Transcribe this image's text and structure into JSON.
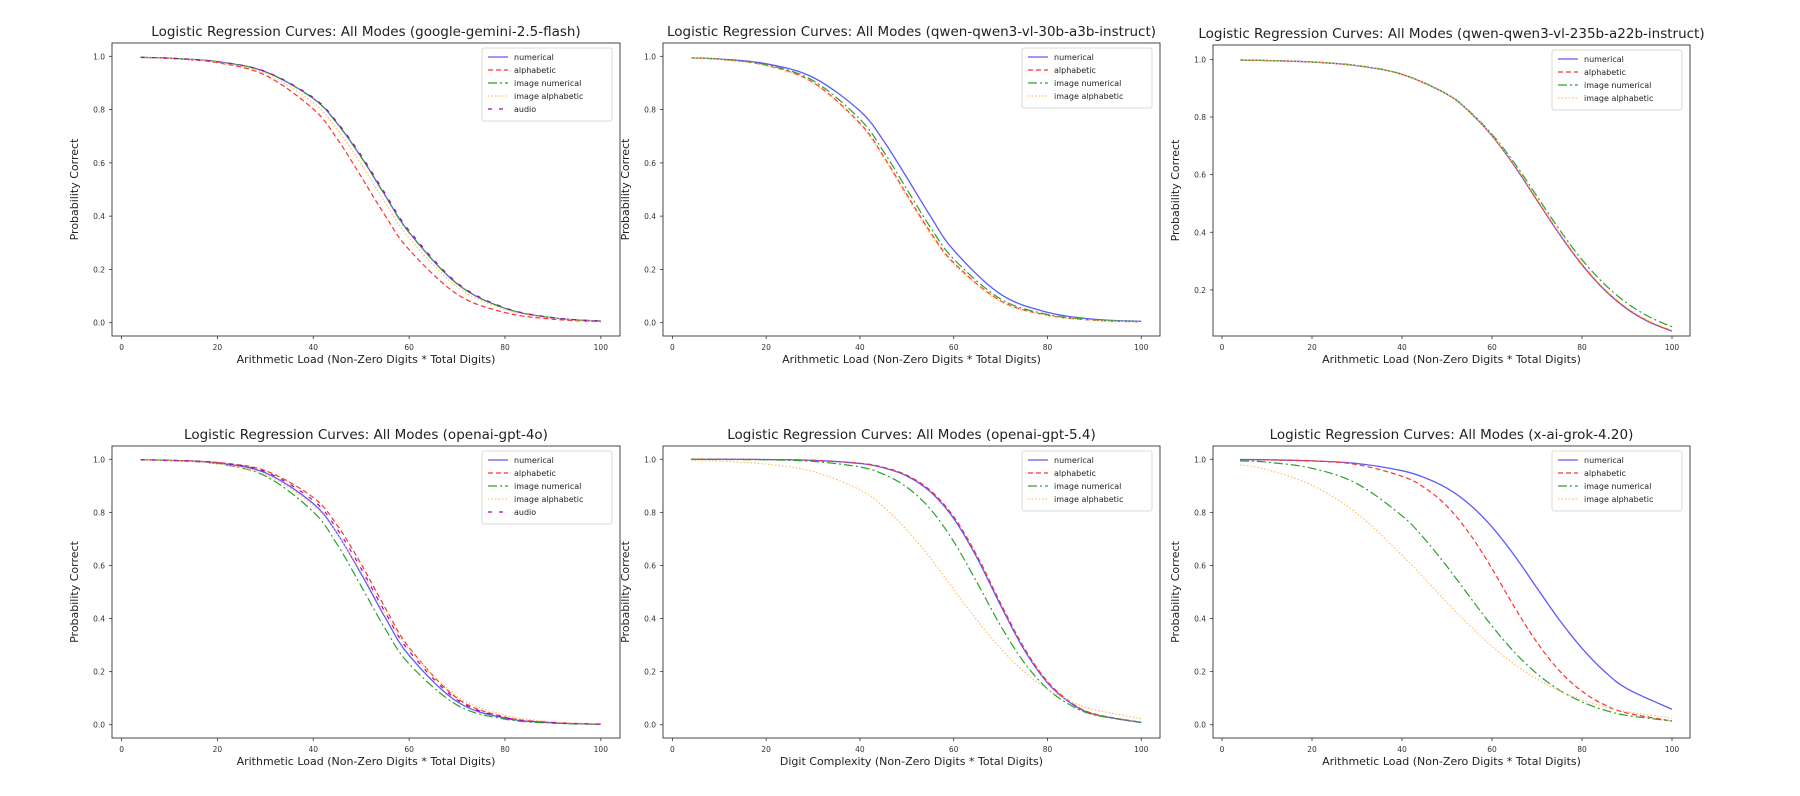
{
  "chart_data": [
    {
      "type": "line",
      "title": "Logistic Regression Curves: All Modes (google-gemini-2.5-flash)",
      "xlabel": "Arithmetic Load (Non-Zero Digits * Total Digits)",
      "ylabel": "Probability Correct",
      "xlim": [
        0,
        100
      ],
      "ylim": [
        0.0,
        1.0
      ],
      "xticks": [
        0,
        20,
        40,
        60,
        80,
        100
      ],
      "yticks": [
        0.0,
        0.2,
        0.4,
        0.6,
        0.8,
        1.0
      ],
      "grid": false,
      "legend_position": "top-right",
      "x": [
        4,
        10,
        20,
        30,
        40,
        45,
        50,
        55,
        60,
        70,
        80,
        90,
        100
      ],
      "series": [
        {
          "name": "numerical",
          "style": "solid",
          "color": "#5a5aff",
          "values": [
            0.996,
            0.993,
            0.98,
            0.942,
            0.842,
            0.748,
            0.622,
            0.478,
            0.339,
            0.146,
            0.054,
            0.018,
            0.006
          ]
        },
        {
          "name": "alphabetic",
          "style": "dashed",
          "color": "#ff3030",
          "values": [
            0.996,
            0.992,
            0.976,
            0.929,
            0.802,
            0.69,
            0.548,
            0.402,
            0.274,
            0.107,
            0.038,
            0.013,
            0.004
          ]
        },
        {
          "name": "image numerical",
          "style": "dashdot",
          "color": "#2ca02c",
          "values": [
            0.996,
            0.993,
            0.98,
            0.942,
            0.841,
            0.747,
            0.621,
            0.477,
            0.338,
            0.146,
            0.054,
            0.018,
            0.006
          ]
        },
        {
          "name": "image alphabetic",
          "style": "dotted",
          "color": "#ffbf66",
          "values": [
            0.996,
            0.992,
            0.978,
            0.936,
            0.825,
            0.725,
            0.595,
            0.451,
            0.318,
            0.135,
            0.05,
            0.017,
            0.006
          ]
        },
        {
          "name": "audio",
          "style": "dashed-sparse",
          "color": "#b000b0",
          "values": [
            0.996,
            0.993,
            0.98,
            0.943,
            0.845,
            0.752,
            0.628,
            0.485,
            0.346,
            0.15,
            0.056,
            0.019,
            0.006
          ]
        }
      ]
    },
    {
      "type": "line",
      "title": "Logistic Regression Curves: All Modes (qwen-qwen3-vl-30b-a3b-instruct)",
      "xlabel": "Arithmetic Load (Non-Zero Digits * Total Digits)",
      "ylabel": "Probability Correct",
      "xlim": [
        0,
        100
      ],
      "ylim": [
        0.0,
        1.0
      ],
      "xticks": [
        0,
        20,
        40,
        60,
        80,
        100
      ],
      "yticks": [
        0.0,
        0.2,
        0.4,
        0.6,
        0.8,
        1.0
      ],
      "grid": false,
      "legend_position": "top-right",
      "x": [
        4,
        10,
        20,
        30,
        40,
        45,
        50,
        55,
        60,
        70,
        80,
        90,
        100
      ],
      "series": [
        {
          "name": "numerical",
          "style": "solid",
          "color": "#5a5aff",
          "values": [
            0.994,
            0.99,
            0.972,
            0.921,
            0.795,
            0.684,
            0.545,
            0.401,
            0.272,
            0.107,
            0.039,
            0.013,
            0.005
          ]
        },
        {
          "name": "alphabetic",
          "style": "dashed",
          "color": "#ff3030",
          "values": [
            0.994,
            0.989,
            0.966,
            0.902,
            0.749,
            0.626,
            0.481,
            0.341,
            0.225,
            0.082,
            0.028,
            0.009,
            0.003
          ]
        },
        {
          "name": "image numerical",
          "style": "dashdot",
          "color": "#2ca02c",
          "values": [
            0.994,
            0.989,
            0.968,
            0.909,
            0.764,
            0.644,
            0.501,
            0.359,
            0.239,
            0.089,
            0.031,
            0.011,
            0.004
          ]
        },
        {
          "name": "image alphabetic",
          "style": "dotted",
          "color": "#ffbf66",
          "values": [
            0.994,
            0.988,
            0.965,
            0.899,
            0.743,
            0.619,
            0.473,
            0.333,
            0.219,
            0.079,
            0.027,
            0.009,
            0.003
          ]
        }
      ]
    },
    {
      "type": "line",
      "title": "Logistic Regression Curves: All Modes (qwen-qwen3-vl-235b-a22b-instruct)",
      "xlabel": "Arithmetic Load (Non-Zero Digits * Total Digits)",
      "ylabel": "Probability Correct",
      "xlim": [
        0,
        100
      ],
      "ylim": [
        0.0,
        1.0
      ],
      "xticks": [
        0,
        20,
        40,
        60,
        80,
        100
      ],
      "yticks": [
        0.2,
        0.4,
        0.6,
        0.8,
        1.0
      ],
      "grid": false,
      "legend_position": "top-right",
      "x": [
        4,
        10,
        20,
        30,
        40,
        50,
        55,
        60,
        65,
        70,
        75,
        80,
        85,
        90,
        95,
        100
      ],
      "series": [
        {
          "name": "numerical",
          "style": "solid",
          "color": "#5a5aff",
          "values": [
            0.998,
            0.996,
            0.991,
            0.978,
            0.948,
            0.879,
            0.818,
            0.735,
            0.63,
            0.511,
            0.393,
            0.287,
            0.2,
            0.134,
            0.088,
            0.057
          ]
        },
        {
          "name": "alphabetic",
          "style": "dashed",
          "color": "#ff3030",
          "values": [
            0.998,
            0.996,
            0.991,
            0.978,
            0.948,
            0.879,
            0.818,
            0.735,
            0.631,
            0.512,
            0.394,
            0.288,
            0.201,
            0.135,
            0.089,
            0.058
          ]
        },
        {
          "name": "image numerical",
          "style": "dashdot",
          "color": "#2ca02c",
          "values": [
            0.998,
            0.996,
            0.991,
            0.979,
            0.949,
            0.88,
            0.82,
            0.74,
            0.64,
            0.525,
            0.409,
            0.305,
            0.22,
            0.154,
            0.106,
            0.072
          ]
        },
        {
          "name": "image alphabetic",
          "style": "dotted",
          "color": "#ffbf66",
          "values": [
            0.998,
            0.996,
            0.991,
            0.978,
            0.948,
            0.879,
            0.819,
            0.737,
            0.634,
            0.516,
            0.398,
            0.292,
            0.205,
            0.139,
            0.092,
            0.06
          ]
        }
      ]
    },
    {
      "type": "line",
      "title": "Logistic Regression Curves: All Modes (openai-gpt-4o)",
      "xlabel": "Arithmetic Load (Non-Zero Digits * Total Digits)",
      "ylabel": "Probability Correct",
      "xlim": [
        0,
        100
      ],
      "ylim": [
        0.0,
        1.0
      ],
      "xticks": [
        0,
        20,
        40,
        60,
        80,
        100
      ],
      "yticks": [
        0.0,
        0.2,
        0.4,
        0.6,
        0.8,
        1.0
      ],
      "grid": false,
      "legend_position": "top-right",
      "x": [
        4,
        10,
        20,
        30,
        40,
        45,
        50,
        55,
        60,
        70,
        80,
        90,
        100
      ],
      "series": [
        {
          "name": "numerical",
          "style": "solid",
          "color": "#5a5aff",
          "values": [
            0.998,
            0.996,
            0.986,
            0.949,
            0.833,
            0.72,
            0.568,
            0.404,
            0.261,
            0.087,
            0.025,
            0.007,
            0.002
          ]
        },
        {
          "name": "alphabetic",
          "style": "dashed",
          "color": "#ff3030",
          "values": [
            0.998,
            0.996,
            0.988,
            0.957,
            0.856,
            0.751,
            0.605,
            0.441,
            0.291,
            0.1,
            0.029,
            0.008,
            0.002
          ]
        },
        {
          "name": "image numerical",
          "style": "dashdot",
          "color": "#2ca02c",
          "values": [
            0.998,
            0.995,
            0.983,
            0.937,
            0.802,
            0.679,
            0.522,
            0.362,
            0.229,
            0.074,
            0.021,
            0.006,
            0.002
          ]
        },
        {
          "name": "image alphabetic",
          "style": "dotted",
          "color": "#ffbf66",
          "values": [
            0.997,
            0.995,
            0.983,
            0.942,
            0.827,
            0.718,
            0.575,
            0.422,
            0.285,
            0.108,
            0.036,
            0.011,
            0.004
          ]
        },
        {
          "name": "audio",
          "style": "dashed-sparse",
          "color": "#b000b0",
          "values": [
            0.998,
            0.996,
            0.987,
            0.953,
            0.845,
            0.736,
            0.588,
            0.424,
            0.277,
            0.094,
            0.027,
            0.008,
            0.002
          ]
        }
      ]
    },
    {
      "type": "line",
      "title": "Logistic Regression Curves: All Modes (openai-gpt-5.4)",
      "xlabel": "Digit Complexity (Non-Zero Digits * Total Digits)",
      "ylabel": "Probability Correct",
      "xlim": [
        0,
        100
      ],
      "ylim": [
        0.0,
        1.0
      ],
      "xticks": [
        0,
        20,
        40,
        60,
        80,
        100
      ],
      "yticks": [
        0.0,
        0.2,
        0.4,
        0.6,
        0.8,
        1.0
      ],
      "grid": false,
      "legend_position": "top-right",
      "x": [
        4,
        10,
        20,
        30,
        40,
        45,
        50,
        55,
        60,
        65,
        70,
        75,
        80,
        85,
        90,
        100
      ],
      "series": [
        {
          "name": "numerical",
          "style": "solid",
          "color": "#5a5aff",
          "values": [
            1.0,
            1.0,
            0.999,
            0.996,
            0.984,
            0.968,
            0.937,
            0.878,
            0.777,
            0.628,
            0.45,
            0.283,
            0.158,
            0.081,
            0.039,
            0.008
          ]
        },
        {
          "name": "alphabetic",
          "style": "dashed",
          "color": "#ff3030",
          "values": [
            1.0,
            1.0,
            0.999,
            0.996,
            0.985,
            0.97,
            0.94,
            0.883,
            0.784,
            0.636,
            0.458,
            0.29,
            0.163,
            0.084,
            0.041,
            0.009
          ]
        },
        {
          "name": "image numerical",
          "style": "dashdot",
          "color": "#2ca02c",
          "values": [
            1.0,
            0.999,
            0.998,
            0.992,
            0.971,
            0.944,
            0.895,
            0.813,
            0.69,
            0.535,
            0.373,
            0.235,
            0.135,
            0.073,
            0.037,
            0.009
          ]
        },
        {
          "name": "image alphabetic",
          "style": "dotted",
          "color": "#ffbf66",
          "values": [
            0.996,
            0.993,
            0.982,
            0.954,
            0.885,
            0.821,
            0.734,
            0.628,
            0.51,
            0.393,
            0.287,
            0.2,
            0.134,
            0.088,
            0.057,
            0.023
          ]
        }
      ]
    },
    {
      "type": "line",
      "title": "Logistic Regression Curves: All Modes (x-ai-grok-4.20)",
      "xlabel": "Arithmetic Load (Non-Zero Digits * Total Digits)",
      "ylabel": "Probability Correct",
      "xlim": [
        0,
        100
      ],
      "ylim": [
        0.0,
        1.0
      ],
      "xticks": [
        0,
        20,
        40,
        60,
        80,
        100
      ],
      "yticks": [
        0.0,
        0.2,
        0.4,
        0.6,
        0.8,
        1.0
      ],
      "grid": false,
      "legend_position": "top-right",
      "x": [
        4,
        10,
        20,
        30,
        40,
        45,
        50,
        55,
        60,
        65,
        70,
        75,
        80,
        85,
        90,
        100
      ],
      "series": [
        {
          "name": "numerical",
          "style": "solid",
          "color": "#5a5aff",
          "values": [
            0.999,
            0.998,
            0.994,
            0.984,
            0.957,
            0.931,
            0.891,
            0.83,
            0.745,
            0.637,
            0.515,
            0.394,
            0.288,
            0.201,
            0.136,
            0.058
          ]
        },
        {
          "name": "alphabetic",
          "style": "dashed",
          "color": "#ff3030",
          "values": [
            0.999,
            0.998,
            0.994,
            0.98,
            0.936,
            0.893,
            0.823,
            0.72,
            0.588,
            0.443,
            0.31,
            0.203,
            0.126,
            0.075,
            0.044,
            0.014
          ]
        },
        {
          "name": "image numerical",
          "style": "dashdot",
          "color": "#2ca02c",
          "values": [
            0.994,
            0.989,
            0.966,
            0.908,
            0.787,
            0.7,
            0.596,
            0.483,
            0.372,
            0.273,
            0.192,
            0.13,
            0.086,
            0.055,
            0.035,
            0.014
          ]
        },
        {
          "name": "image alphabetic",
          "style": "dotted",
          "color": "#ffbf66",
          "values": [
            0.979,
            0.961,
            0.902,
            0.796,
            0.638,
            0.551,
            0.46,
            0.374,
            0.295,
            0.228,
            0.172,
            0.128,
            0.094,
            0.068,
            0.049,
            0.025
          ]
        }
      ]
    }
  ]
}
